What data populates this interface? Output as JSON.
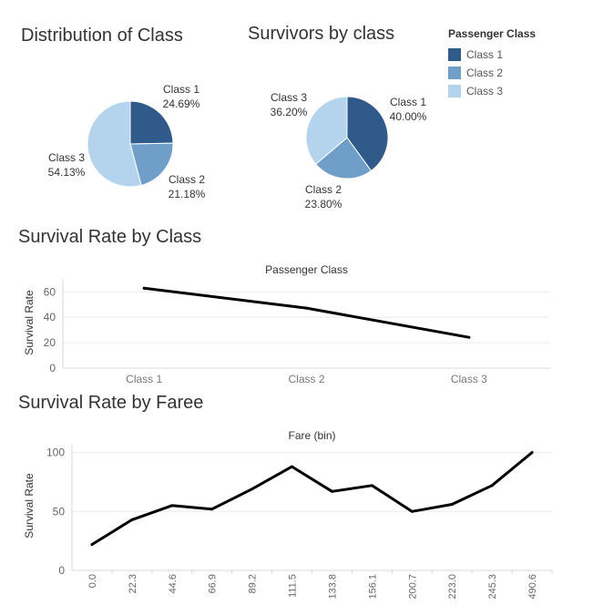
{
  "colors": {
    "class1": "#2f5a8a",
    "class2": "#6f9fc8",
    "class3": "#b3d4ec",
    "line": "#000000"
  },
  "legend": {
    "title": "Passenger Class",
    "items": [
      {
        "label": "Class 1",
        "color": "#2f5a8a"
      },
      {
        "label": "Class 2",
        "color": "#6f9fc8"
      },
      {
        "label": "Class 3",
        "color": "#b3d4ec"
      }
    ]
  },
  "chart_data": [
    {
      "type": "pie",
      "title": "Distribution of Class",
      "labels": [
        "Class 1",
        "Class 2",
        "Class 3"
      ],
      "values": [
        24.69,
        21.18,
        54.13
      ],
      "value_labels": [
        "24.69%",
        "21.18%",
        "54.13%"
      ],
      "legend": "top-right"
    },
    {
      "type": "pie",
      "title": "Survivors by class",
      "labels": [
        "Class 1",
        "Class 2",
        "Class 3"
      ],
      "values": [
        40.0,
        23.8,
        36.2
      ],
      "value_labels": [
        "40.00%",
        "23.80%",
        "36.20%"
      ],
      "legend": "top-right"
    },
    {
      "type": "line",
      "title": "Survival Rate by Class",
      "xlabel": "Passenger Class",
      "ylabel": "Survival Rate",
      "categories": [
        "Class 1",
        "Class 2",
        "Class 3"
      ],
      "values": [
        62.96,
        47.28,
        24.24
      ],
      "yticks": [
        "0",
        "20",
        "40",
        "60"
      ],
      "ylim": [
        0,
        66
      ],
      "grid": true
    },
    {
      "type": "line",
      "title": "Survival Rate by Faree",
      "xlabel": "Fare (bin)",
      "ylabel": "Survival Rate",
      "categories": [
        "0.0",
        "22.3",
        "44.6",
        "66.9",
        "89.2",
        "111.5",
        "133.8",
        "156.1",
        "200.7",
        "223.0",
        "245.3",
        "490.6"
      ],
      "values": [
        22,
        43,
        55,
        52,
        69,
        88,
        67,
        72,
        50,
        56,
        72,
        100
      ],
      "yticks": [
        "0",
        "50",
        "100"
      ],
      "ylim": [
        0,
        102
      ],
      "grid": true
    }
  ]
}
